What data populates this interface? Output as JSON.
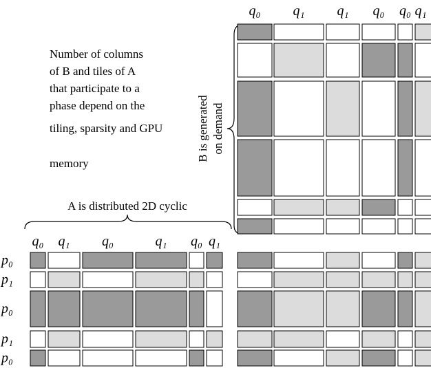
{
  "top_labels": [
    "q₀",
    "q₁",
    "q₁",
    "q₀",
    "q₀",
    "q₁"
  ],
  "note": [
    "Number of columns",
    "of B and tiles of A",
    "that participate to a",
    "phase depend on the",
    "tiling, sparsity and GPU",
    "memory"
  ],
  "b_label": [
    "B is generated",
    "on demand"
  ],
  "a_label": "A is distributed 2D cyclic",
  "a_column_labels": [
    "q₀",
    "q₁",
    "q₀",
    "q₁",
    "q₀",
    "q₁"
  ],
  "row_labels": [
    "p₀",
    "p₁",
    "p₀",
    "p₁",
    "p₀"
  ]
}
